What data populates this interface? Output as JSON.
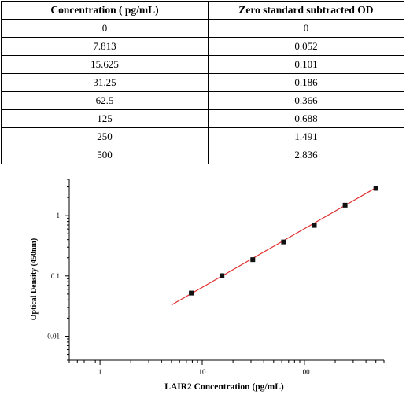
{
  "table": {
    "headers": [
      "Concentration ( pg/mL)",
      "Zero standard subtracted OD"
    ],
    "rows": [
      [
        "0",
        "0"
      ],
      [
        "7.813",
        "0.052"
      ],
      [
        "15.625",
        "0.101"
      ],
      [
        "31.25",
        "0.186"
      ],
      [
        "62.5",
        "0.366"
      ],
      [
        "125",
        "0.688"
      ],
      [
        "250",
        "1.491"
      ],
      [
        "500",
        "2.836"
      ]
    ]
  },
  "chart_data": {
    "type": "scatter",
    "title": "",
    "xlabel": "LAIR2 Concentration (pg/mL)",
    "ylabel": "Optical Density (450nm)",
    "x_scale": "log",
    "y_scale": "log",
    "xlim": [
      0.5,
      600
    ],
    "ylim": [
      0.004,
      4
    ],
    "x_ticks": [
      1,
      10,
      100
    ],
    "x_tick_labels": [
      "1",
      "10",
      "100"
    ],
    "y_ticks": [
      0.01,
      0.1,
      1
    ],
    "y_tick_labels": [
      "0.01",
      "0.1",
      "1"
    ],
    "grid": false,
    "points": {
      "x": [
        7.813,
        15.625,
        31.25,
        62.5,
        125,
        250,
        500
      ],
      "y": [
        0.052,
        0.101,
        0.186,
        0.366,
        0.688,
        1.491,
        2.836
      ]
    },
    "fit_line": {
      "x": [
        5,
        500
      ],
      "y": [
        0.033,
        2.9
      ],
      "color": "#e03030"
    },
    "marker_color": "#111111"
  }
}
